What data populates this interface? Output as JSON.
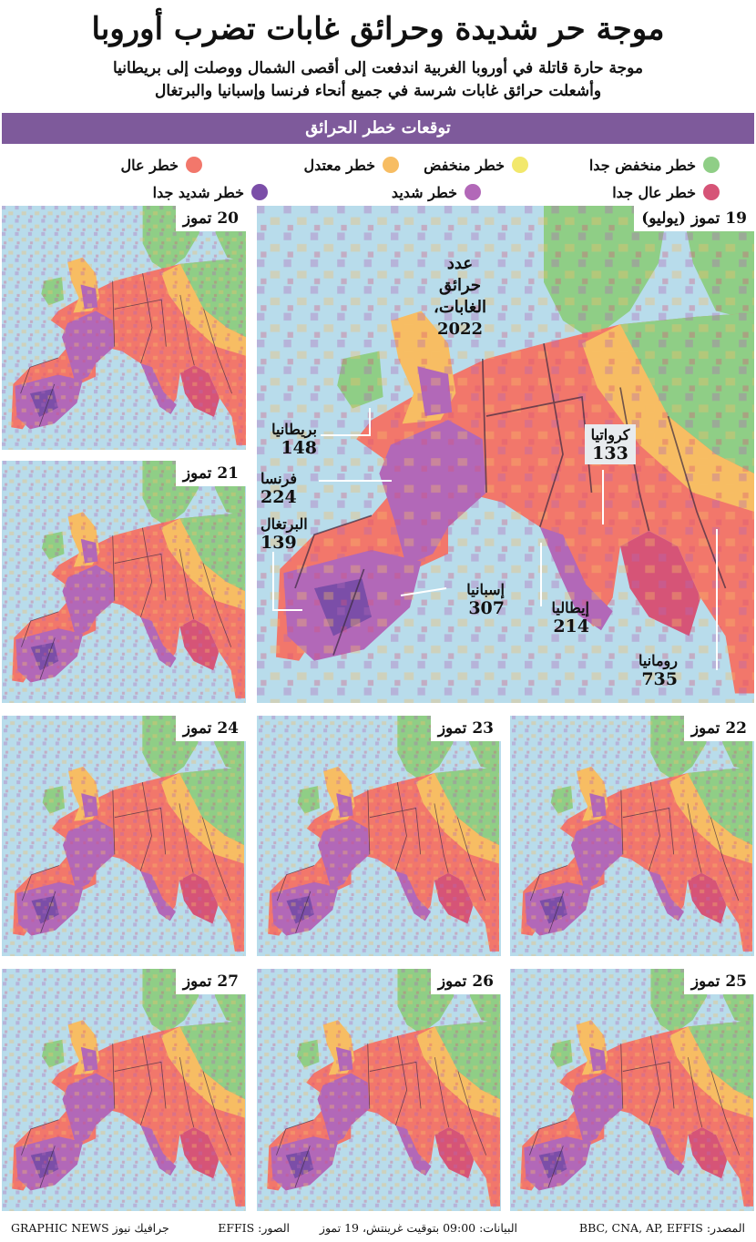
{
  "header": {
    "title": "موجة حر شديدة وحرائق غابات تضرب أوروبا",
    "subtitle_line1": "موجة حارة قاتلة في أوروبا الغربية اندفعت إلى أقصى الشمال ووصلت إلى بريطانيا",
    "subtitle_line2": "وأشعلت حرائق غابات شرسة في جميع أنحاء فرنسا وإسبانيا والبرتغال"
  },
  "section_title": "توقعات خطر الحرائق",
  "legend": [
    {
      "label": "خطر منخفض جدا",
      "color": "#8fce86"
    },
    {
      "label": "خطر منخفض",
      "color": "#f2e86c"
    },
    {
      "label": "خطر معتدل",
      "color": "#f7bd63"
    },
    {
      "label": "خطر عال",
      "color": "#f2776b"
    },
    {
      "label": "خطر عال جدا",
      "color": "#d65477"
    },
    {
      "label": "خطر شديد",
      "color": "#b268b8"
    },
    {
      "label": "خطر شديد جدا",
      "color": "#7b4ea8"
    }
  ],
  "main_map": {
    "date_label": "19 تموز (يوليو)",
    "fires_title_line1": "عدد",
    "fires_title_line2": "حرائق الغابات،",
    "fires_title_line3": "2022",
    "countries": [
      {
        "name": "بريطانيا",
        "fires": "148"
      },
      {
        "name": "فرنسا",
        "fires": "224"
      },
      {
        "name": "البرتغال",
        "fires": "139"
      },
      {
        "name": "إسبانيا",
        "fires": "307"
      },
      {
        "name": "إيطاليا",
        "fires": "214"
      },
      {
        "name": "كرواتيا",
        "fires": "133"
      },
      {
        "name": "رومانيا",
        "fires": "735"
      }
    ]
  },
  "small_maps": [
    {
      "label": "20 تموز"
    },
    {
      "label": "21 تموز"
    },
    {
      "label": "22 تموز"
    },
    {
      "label": "23 تموز"
    },
    {
      "label": "24 تموز"
    },
    {
      "label": "25 تموز"
    },
    {
      "label": "26 تموز"
    },
    {
      "label": "27 تموز"
    }
  ],
  "footer": {
    "source": "المصدر: BBC, CNA, AP, EFFIS",
    "data_note": "البيانات: 09:00 بتوقيت غرينتش، 19 تموز",
    "images": "الصور: EFFIS",
    "credit": "GRAPHIC NEWS جرافيك نيوز"
  },
  "colors": {
    "sea": "#b8dceb",
    "header_bar": "#7e5a9b"
  }
}
